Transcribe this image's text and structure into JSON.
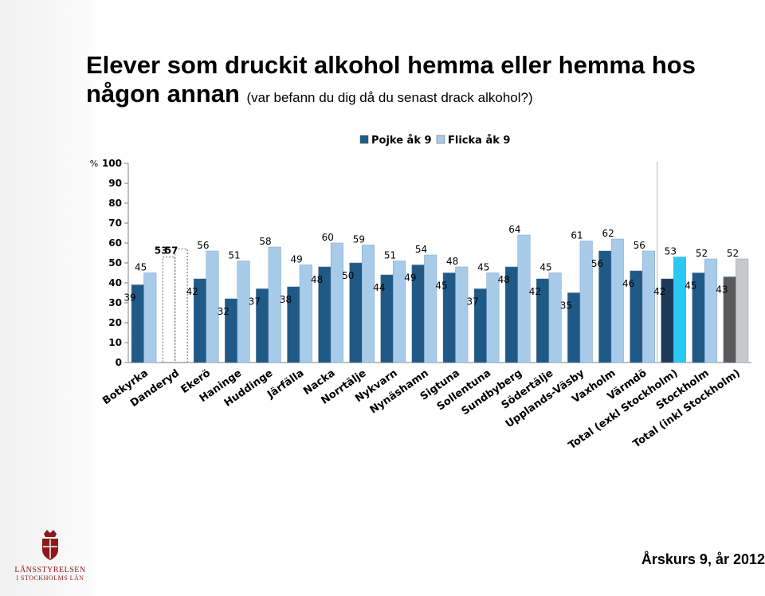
{
  "title": {
    "line1": "Elever som druckit alkohol hemma eller hemma hos",
    "line2": "någon annan",
    "subtitle": "(var befann du dig då du senast drack alkohol?)"
  },
  "footer": {
    "note": "Årskurs 9, år 2012"
  },
  "logo": {
    "line1": "LÄNSSTYRELSEN",
    "line2": "I STOCKHOLMS LÄN"
  },
  "colors": {
    "boy": "#1f5a87",
    "girl": "#a8cbea",
    "total_excl_boy": "#1c3a5a",
    "total_excl_girl": "#29c9f4",
    "total_incl_boy": "#5a5a5a",
    "total_incl_girl": "#c9c9c9",
    "logo": "#8b1a1a"
  },
  "chart_data": {
    "type": "bar",
    "yaxis_unit": "%",
    "ylim": [
      0,
      100
    ],
    "yticks": [
      "0",
      "10",
      "20",
      "30",
      "40",
      "50",
      "60",
      "70",
      "80",
      "90",
      "100"
    ],
    "legend_position": "top",
    "grid": false,
    "categories": [
      "Botkyrka",
      "Danderyd",
      "Ekerö",
      "Haninge",
      "Huddinge",
      "Järfälla",
      "Nacka",
      "Norrtälje",
      "Nykvarn",
      "Nynäshamn",
      "Sigtuna",
      "Sollentuna",
      "Sundbyberg",
      "Södertälje",
      "Upplands-Väsby",
      "Vaxholm",
      "Värmdö",
      "Total (exkl Stockholm)",
      "Stockholm",
      "Total (inkl Stockholm)"
    ],
    "series": [
      {
        "name": "Pojke åk 9",
        "values": [
          39,
          53,
          42,
          32,
          37,
          38,
          48,
          50,
          44,
          49,
          45,
          37,
          48,
          42,
          35,
          56,
          46,
          42,
          45,
          43
        ]
      },
      {
        "name": "Flicka åk 9",
        "values": [
          45,
          57,
          56,
          51,
          58,
          49,
          60,
          59,
          51,
          54,
          48,
          45,
          64,
          45,
          61,
          62,
          56,
          53,
          52,
          52
        ]
      }
    ],
    "dashed_outline_categories": [
      "Danderyd"
    ]
  }
}
